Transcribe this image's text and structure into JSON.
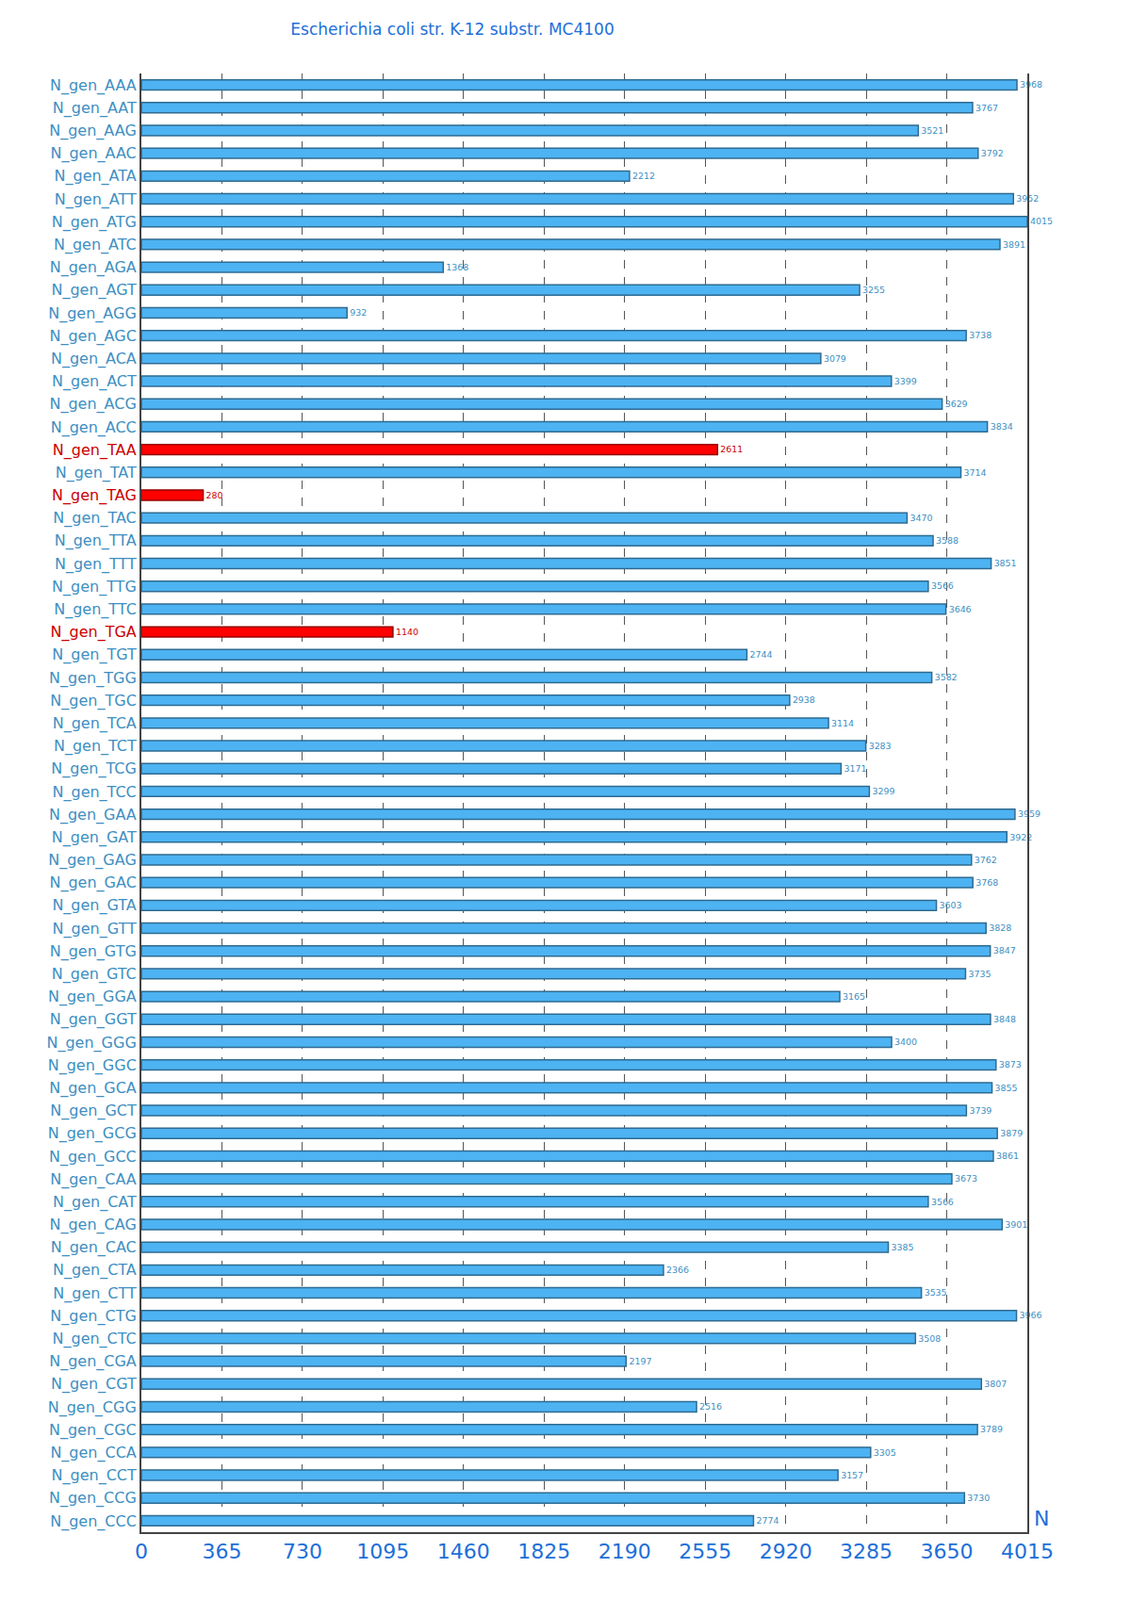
{
  "chart_data": {
    "type": "bar",
    "orientation": "horizontal",
    "title": "Escherichia coli str. K-12 substr. MC4100",
    "x_label": "N",
    "categories": [
      "N_gen_AAA",
      "N_gen_AAT",
      "N_gen_AAG",
      "N_gen_AAC",
      "N_gen_ATA",
      "N_gen_ATT",
      "N_gen_ATG",
      "N_gen_ATC",
      "N_gen_AGA",
      "N_gen_AGT",
      "N_gen_AGG",
      "N_gen_AGC",
      "N_gen_ACA",
      "N_gen_ACT",
      "N_gen_ACG",
      "N_gen_ACC",
      "N_gen_TAA",
      "N_gen_TAT",
      "N_gen_TAG",
      "N_gen_TAC",
      "N_gen_TTA",
      "N_gen_TTT",
      "N_gen_TTG",
      "N_gen_TTC",
      "N_gen_TGA",
      "N_gen_TGT",
      "N_gen_TGG",
      "N_gen_TGC",
      "N_gen_TCA",
      "N_gen_TCT",
      "N_gen_TCG",
      "N_gen_TCC",
      "N_gen_GAA",
      "N_gen_GAT",
      "N_gen_GAG",
      "N_gen_GAC",
      "N_gen_GTA",
      "N_gen_GTT",
      "N_gen_GTG",
      "N_gen_GTC",
      "N_gen_GGA",
      "N_gen_GGT",
      "N_gen_GGG",
      "N_gen_GGC",
      "N_gen_GCA",
      "N_gen_GCT",
      "N_gen_GCG",
      "N_gen_GCC",
      "N_gen_CAA",
      "N_gen_CAT",
      "N_gen_CAG",
      "N_gen_CAC",
      "N_gen_CTA",
      "N_gen_CTT",
      "N_gen_CTG",
      "N_gen_CTC",
      "N_gen_CGA",
      "N_gen_CGT",
      "N_gen_CGG",
      "N_gen_CGC",
      "N_gen_CCA",
      "N_gen_CCT",
      "N_gen_CCG",
      "N_gen_CCC"
    ],
    "values": [
      3968,
      3767,
      3521,
      3792,
      2212,
      3952,
      4015,
      3891,
      1368,
      3255,
      932,
      3738,
      3079,
      3399,
      3629,
      3834,
      2611,
      3714,
      280,
      3470,
      3588,
      3851,
      3566,
      3646,
      1140,
      2744,
      3582,
      2938,
      3114,
      3283,
      3171,
      3299,
      3959,
      3922,
      3762,
      3768,
      3603,
      3828,
      3847,
      3735,
      3165,
      3848,
      3400,
      3873,
      3855,
      3739,
      3879,
      3861,
      3673,
      3566,
      3901,
      3385,
      2366,
      3535,
      3966,
      3508,
      2197,
      3807,
      2516,
      3789,
      3305,
      3157,
      3730,
      2774
    ],
    "colors": [
      "#4db3f2",
      "#4db3f2",
      "#4db3f2",
      "#4db3f2",
      "#4db3f2",
      "#4db3f2",
      "#4db3f2",
      "#4db3f2",
      "#4db3f2",
      "#4db3f2",
      "#4db3f2",
      "#4db3f2",
      "#4db3f2",
      "#4db3f2",
      "#4db3f2",
      "#4db3f2",
      "#ff0000",
      "#4db3f2",
      "#ff0000",
      "#4db3f2",
      "#4db3f2",
      "#4db3f2",
      "#4db3f2",
      "#4db3f2",
      "#ff0000",
      "#4db3f2",
      "#4db3f2",
      "#4db3f2",
      "#4db3f2",
      "#4db3f2",
      "#4db3f2",
      "#4db3f2",
      "#4db3f2",
      "#4db3f2",
      "#4db3f2",
      "#4db3f2",
      "#4db3f2",
      "#4db3f2",
      "#4db3f2",
      "#4db3f2",
      "#4db3f2",
      "#4db3f2",
      "#4db3f2",
      "#4db3f2",
      "#4db3f2",
      "#4db3f2",
      "#4db3f2",
      "#4db3f2",
      "#4db3f2",
      "#4db3f2",
      "#4db3f2",
      "#4db3f2",
      "#4db3f2",
      "#4db3f2",
      "#4db3f2",
      "#4db3f2",
      "#4db3f2",
      "#4db3f2",
      "#4db3f2",
      "#4db3f2",
      "#4db3f2",
      "#4db3f2",
      "#4db3f2",
      "#4db3f2"
    ],
    "xlim": [
      0,
      4015
    ],
    "xticks": [
      0,
      365,
      730,
      1095,
      1460,
      1825,
      2190,
      2555,
      2920,
      3285,
      3650,
      4015
    ],
    "grid": true,
    "data_labels": true
  }
}
